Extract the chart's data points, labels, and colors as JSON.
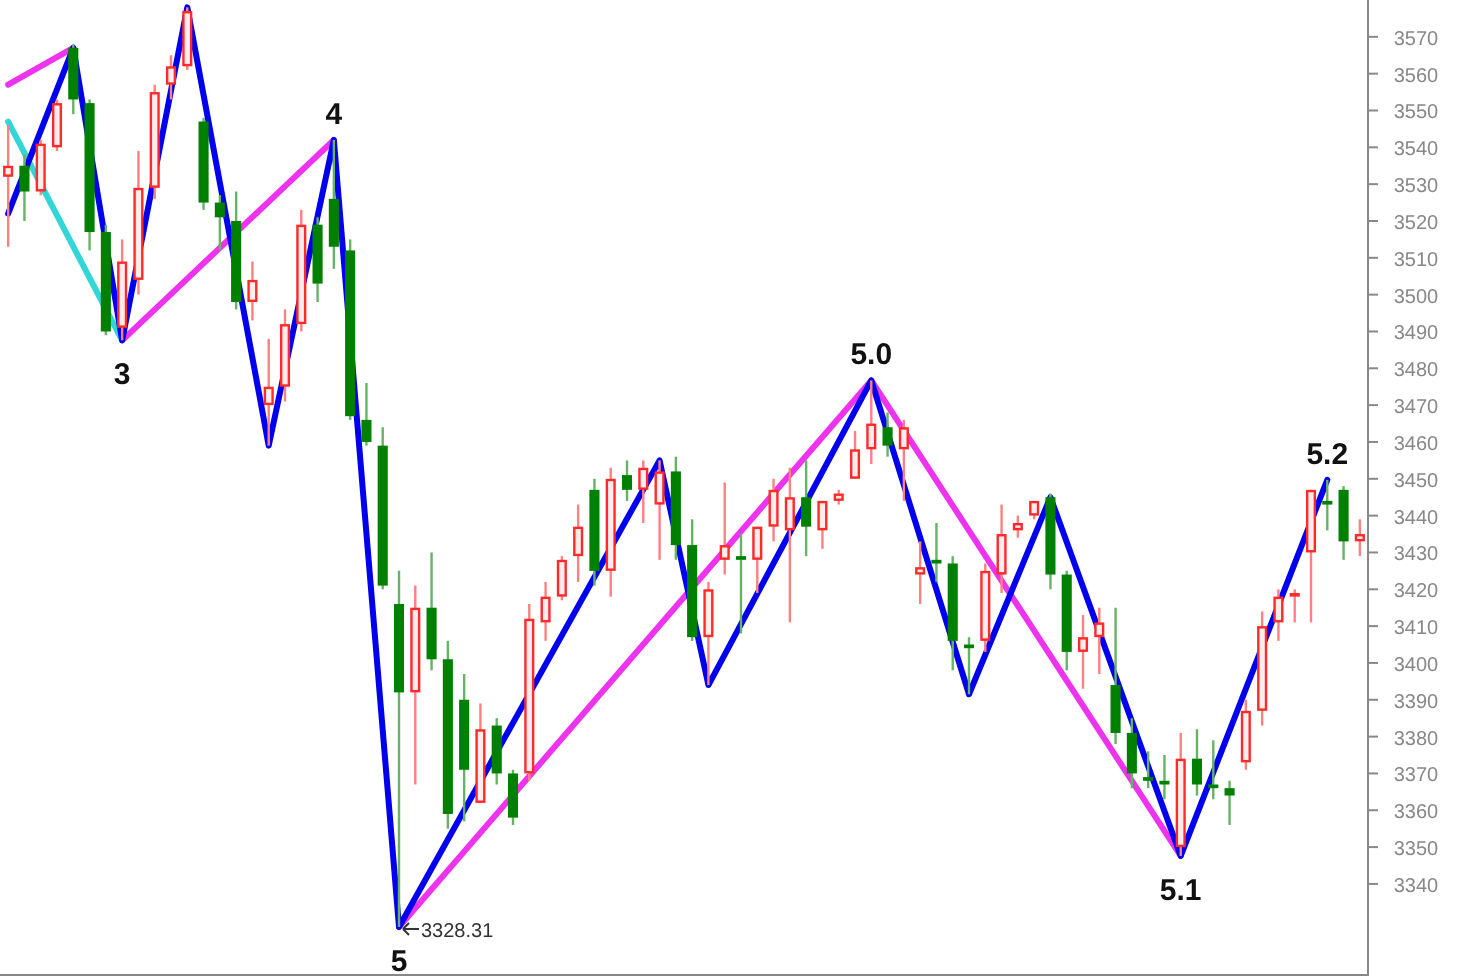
{
  "chart_data": {
    "type": "candlestick",
    "categories": [
      null,
      null,
      null,
      null,
      null,
      null,
      null,
      null,
      null,
      null,
      null,
      null,
      null,
      null,
      null,
      null,
      null,
      null,
      null,
      null,
      null,
      null,
      null,
      null,
      null,
      null,
      null,
      null,
      null,
      null,
      null,
      null,
      null,
      null,
      null,
      null,
      null,
      null,
      null,
      null,
      null,
      null,
      null,
      null,
      null,
      null,
      null,
      null,
      null,
      null,
      null,
      null,
      null,
      null,
      null,
      null,
      null,
      null,
      null,
      null,
      null,
      null,
      null,
      null,
      null,
      null,
      null,
      null,
      null,
      null,
      null,
      null,
      null,
      null,
      null,
      null,
      null,
      null,
      null,
      null,
      null,
      null,
      null,
      null
    ],
    "ohlc": [
      [
        3532,
        3546,
        3513,
        3535
      ],
      [
        3535,
        3538,
        3520,
        3528
      ],
      [
        3528,
        3542,
        3527,
        3541
      ],
      [
        3540,
        3553,
        3539,
        3552
      ],
      [
        3567,
        3568,
        3549,
        3553
      ],
      [
        3552,
        3553,
        3512,
        3517
      ],
      [
        3517,
        3519,
        3489,
        3490
      ],
      [
        3491,
        3515,
        3487.6,
        3509
      ],
      [
        3504,
        3539,
        3500,
        3529
      ],
      [
        3529,
        3557,
        3526,
        3555
      ],
      [
        3557,
        3565,
        3553,
        3562
      ],
      [
        3562,
        3578,
        3561,
        3577
      ],
      [
        3547,
        3548,
        3523,
        3525
      ],
      [
        3525,
        3527,
        3512,
        3521
      ],
      [
        3520,
        3528,
        3496,
        3498
      ],
      [
        3498,
        3509,
        3493,
        3504
      ],
      [
        3470,
        3488,
        3459,
        3475
      ],
      [
        3475,
        3496,
        3471,
        3492
      ],
      [
        3492,
        3523,
        3490,
        3519
      ],
      [
        3519,
        3521,
        3498,
        3503
      ],
      [
        3526,
        3542,
        3507,
        3513
      ],
      [
        3512,
        3515,
        3466,
        3467
      ],
      [
        3466,
        3476,
        3459,
        3460
      ],
      [
        3459,
        3464,
        3420,
        3421
      ],
      [
        3416,
        3425,
        3328.31,
        3392
      ],
      [
        3392,
        3421,
        3367,
        3415
      ],
      [
        3415,
        3430,
        3398,
        3401
      ],
      [
        3401,
        3406,
        3355,
        3359
      ],
      [
        3390,
        3397,
        3357,
        3371
      ],
      [
        3362,
        3389,
        3362,
        3382
      ],
      [
        3383,
        3385,
        3367,
        3370
      ],
      [
        3370,
        3371,
        3356,
        3358
      ],
      [
        3370,
        3416,
        3368,
        3412
      ],
      [
        3411,
        3422,
        3406,
        3418
      ],
      [
        3418,
        3429,
        3417,
        3428
      ],
      [
        3429,
        3443,
        3422,
        3437
      ],
      [
        3447,
        3450,
        3421,
        3425
      ],
      [
        3425,
        3453,
        3418,
        3450
      ],
      [
        3451,
        3455,
        3444,
        3447
      ],
      [
        3447,
        3455,
        3438,
        3453
      ],
      [
        3443,
        3455,
        3428,
        3452
      ],
      [
        3452,
        3456,
        3428,
        3432
      ],
      [
        3432,
        3439,
        3406,
        3407
      ],
      [
        3407,
        3422,
        3394,
        3420
      ],
      [
        3428,
        3449,
        3424,
        3432
      ],
      [
        3429,
        3435,
        3408,
        3428
      ],
      [
        3428,
        3437,
        3419,
        3437
      ],
      [
        3437,
        3450,
        3433,
        3447
      ],
      [
        3436,
        3453,
        3411,
        3445
      ],
      [
        3445,
        3455,
        3429,
        3437
      ],
      [
        3436,
        3444,
        3431,
        3444
      ],
      [
        3444,
        3447,
        3443,
        3446
      ],
      [
        3450,
        3463,
        3450,
        3458
      ],
      [
        3458,
        3476.7,
        3454,
        3465
      ],
      [
        3464,
        3468,
        3456,
        3459
      ],
      [
        3458,
        3466,
        3444,
        3464
      ],
      [
        3424,
        3433,
        3416,
        3426
      ],
      [
        3428,
        3438,
        3422,
        3427
      ],
      [
        3427,
        3429,
        3398,
        3406
      ],
      [
        3405,
        3407,
        3391.5,
        3404
      ],
      [
        3406,
        3427,
        3403,
        3425
      ],
      [
        3424,
        3443,
        3419,
        3435
      ],
      [
        3436,
        3440,
        3434,
        3438
      ],
      [
        3440,
        3444,
        3439,
        3444
      ],
      [
        3445,
        3446,
        3420,
        3424
      ],
      [
        3424,
        3425,
        3398,
        3403
      ],
      [
        3403,
        3413,
        3393,
        3407
      ],
      [
        3407,
        3415,
        3397,
        3411
      ],
      [
        3394,
        3415,
        3378,
        3381
      ],
      [
        3381,
        3385,
        3366,
        3370
      ],
      [
        3369,
        3376,
        3366,
        3368
      ],
      [
        3368,
        3375,
        3363,
        3367
      ],
      [
        3350,
        3381,
        3347.6,
        3374
      ],
      [
        3374,
        3382,
        3364,
        3367
      ],
      [
        3367,
        3379,
        3363,
        3366
      ],
      [
        3366,
        3368,
        3356,
        3364
      ],
      [
        3373,
        3390,
        3371,
        3387
      ],
      [
        3387,
        3414,
        3383,
        3410
      ],
      [
        3411,
        3420,
        3406,
        3418
      ],
      [
        3418,
        3420,
        3411,
        3419
      ],
      [
        3430,
        3447,
        3411,
        3447
      ],
      [
        3444,
        3449.7,
        3436,
        3443
      ],
      [
        3447,
        3448,
        3428,
        3433
      ],
      [
        3433,
        3439,
        3429,
        3435
      ]
    ],
    "series": [
      {
        "type": "line",
        "color": "#33d6d6",
        "values": [
          3547,
          null,
          null,
          null,
          null,
          null,
          null,
          3487.6,
          null,
          null,
          null,
          null,
          null,
          null,
          null,
          null,
          null,
          null,
          null,
          null,
          null,
          null,
          null,
          null,
          null,
          null,
          null,
          null,
          null,
          null,
          null,
          null,
          null,
          null,
          null,
          null,
          null,
          null,
          null,
          null,
          null,
          null,
          null,
          null,
          null,
          null,
          null,
          null,
          null,
          null,
          null,
          null,
          null,
          null,
          null,
          null,
          null,
          null,
          null,
          null,
          null,
          null,
          null,
          null,
          null,
          null,
          null,
          null,
          null,
          null,
          null,
          null,
          null,
          null,
          null,
          null,
          null,
          null,
          null,
          null,
          null,
          null,
          null,
          null
        ]
      },
      {
        "type": "line",
        "color": "#ee33ee",
        "values": [
          3557,
          null,
          null,
          null,
          3567,
          null,
          null,
          null,
          null,
          null,
          null,
          null,
          null,
          null,
          null,
          null,
          null,
          null,
          null,
          null,
          null,
          null,
          null,
          null,
          null,
          null,
          null,
          null,
          null,
          null,
          null,
          null,
          null,
          null,
          null,
          null,
          null,
          null,
          null,
          null,
          null,
          null,
          null,
          null,
          null,
          null,
          null,
          null,
          null,
          null,
          null,
          null,
          null,
          null,
          null,
          null,
          null,
          null,
          null,
          null,
          null,
          null,
          null,
          null,
          null,
          null,
          null,
          null,
          null,
          null,
          null,
          null,
          null,
          null,
          null,
          null,
          null,
          null,
          null,
          null,
          null,
          null,
          null,
          null
        ]
      },
      {
        "type": "line",
        "color": "#ee33ee",
        "values": [
          null,
          null,
          null,
          null,
          null,
          null,
          null,
          3487.6,
          null,
          null,
          null,
          null,
          null,
          null,
          null,
          null,
          null,
          null,
          null,
          null,
          3542,
          null,
          null,
          null,
          null,
          null,
          null,
          null,
          null,
          null,
          null,
          null,
          null,
          null,
          null,
          null,
          null,
          null,
          null,
          null,
          null,
          null,
          null,
          null,
          null,
          null,
          null,
          null,
          null,
          null,
          null,
          null,
          null,
          null,
          null,
          null,
          null,
          null,
          null,
          null,
          null,
          null,
          null,
          null,
          null,
          null,
          null,
          null,
          null,
          null,
          null,
          null,
          null,
          null,
          null,
          null,
          null,
          null,
          null,
          null,
          null,
          null,
          null,
          null
        ]
      },
      {
        "type": "line",
        "color": "#ee33ee",
        "values": [
          null,
          null,
          null,
          null,
          null,
          null,
          null,
          null,
          null,
          null,
          null,
          null,
          null,
          null,
          null,
          null,
          null,
          null,
          null,
          null,
          null,
          null,
          null,
          null,
          3328.31,
          null,
          null,
          null,
          null,
          null,
          null,
          null,
          null,
          null,
          null,
          null,
          null,
          null,
          null,
          null,
          null,
          null,
          null,
          null,
          null,
          null,
          null,
          null,
          null,
          null,
          null,
          null,
          null,
          3476.7,
          null,
          null,
          null,
          null,
          null,
          null,
          null,
          null,
          null,
          null,
          null,
          null,
          null,
          null,
          null,
          null,
          null,
          null,
          3347.6,
          null,
          null,
          null,
          null,
          null,
          null,
          null,
          null,
          null,
          null,
          null
        ]
      },
      {
        "type": "line",
        "color": "#0000ee",
        "values": [
          3522,
          null,
          null,
          null,
          3567,
          null,
          null,
          3487.6,
          null,
          null,
          null,
          3578,
          null,
          null,
          null,
          null,
          3459,
          null,
          null,
          null,
          3542,
          null,
          null,
          null,
          3328.31,
          null,
          null,
          null,
          null,
          null,
          null,
          null,
          null,
          null,
          null,
          null,
          null,
          null,
          null,
          null,
          3455,
          null,
          null,
          3394,
          null,
          null,
          null,
          null,
          null,
          null,
          null,
          null,
          null,
          3476.7,
          null,
          null,
          null,
          null,
          null,
          3391.5,
          null,
          null,
          null,
          null,
          3445,
          null,
          null,
          null,
          null,
          null,
          null,
          null,
          3347.6,
          null,
          null,
          null,
          null,
          null,
          null,
          null,
          null,
          3449.7,
          null,
          null
        ]
      }
    ],
    "annotations": [
      {
        "text": "3",
        "y": 3487.6
      },
      {
        "text": "4",
        "y": 3542
      },
      {
        "text": "5",
        "y": 3328.31
      },
      "3328.31",
      {
        "text": "5.0",
        "y": 3476.7
      },
      {
        "text": "5.1",
        "y": 3347.6
      },
      {
        "text": "5.2",
        "y": 3449.7
      }
    ],
    "ylim": [
      3315,
      3580
    ],
    "yticks": [
      3340,
      3350,
      3360,
      3370,
      3380,
      3390,
      3400,
      3410,
      3420,
      3430,
      3440,
      3450,
      3460,
      3470,
      3480,
      3490,
      3500,
      3510,
      3520,
      3530,
      3540,
      3550,
      3560,
      3570
    ],
    "tick_labels": "y"
  }
}
